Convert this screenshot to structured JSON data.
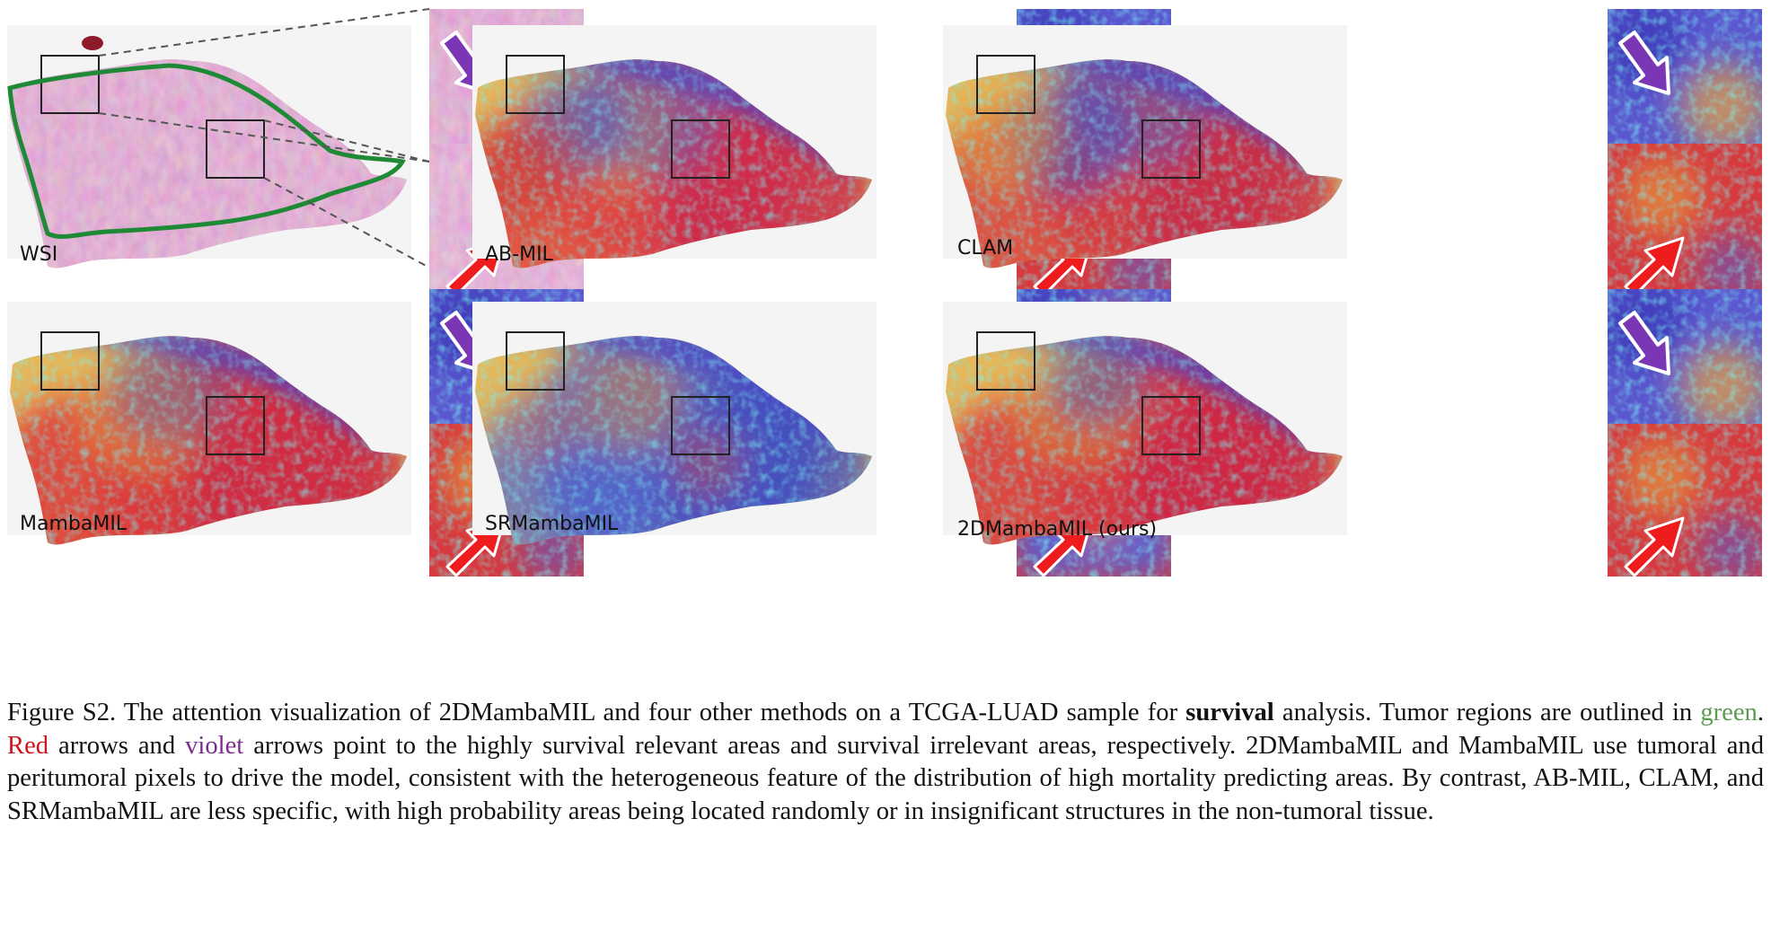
{
  "figure": {
    "panels": [
      {
        "id": "wsi",
        "label": "WSI",
        "type": "he"
      },
      {
        "id": "abmil",
        "label": "AB-MIL",
        "type": "heat-abmil"
      },
      {
        "id": "clam",
        "label": "CLAM",
        "type": "heat-clam"
      },
      {
        "id": "mambamil",
        "label": "MambaMIL",
        "type": "heat-mamba"
      },
      {
        "id": "srmambamil",
        "label": "SRMambaMIL",
        "type": "heat-sr"
      },
      {
        "id": "2dmamba",
        "label": "2DMambaMIL (ours)",
        "type": "heat-2d"
      }
    ],
    "colors": {
      "tumor_outline": "#1f8a35",
      "red_arrow": "#ee1c1c",
      "violet_arrow": "#7a36b5",
      "he_pink": "#c779ac",
      "heat_high": "#d22a3a",
      "heat_low": "#4a44c8"
    }
  },
  "caption": {
    "p1": "Figure S2. The attention visualization of 2DMambaMIL and four other methods on a TCGA-LUAD sample for ",
    "b1": "survival",
    "p2": " analysis. Tumor regions are outlined in ",
    "green": "green",
    "p3": ". ",
    "red": "Red",
    "p4": " arrows and ",
    "violet": "violet",
    "p5": " arrows point to the highly survival relevant areas and survival irrelevant areas, respectively. 2DMambaMIL and MambaMIL use tumoral and peritumoral pixels to drive the model, consistent with the heterogeneous feature of the distribution of high mortality predicting areas. By contrast, AB-MIL, CLAM, and SRMambaMIL are less specific, with high probability areas being located randomly or in insignificant structures in the non-tumoral tissue."
  }
}
